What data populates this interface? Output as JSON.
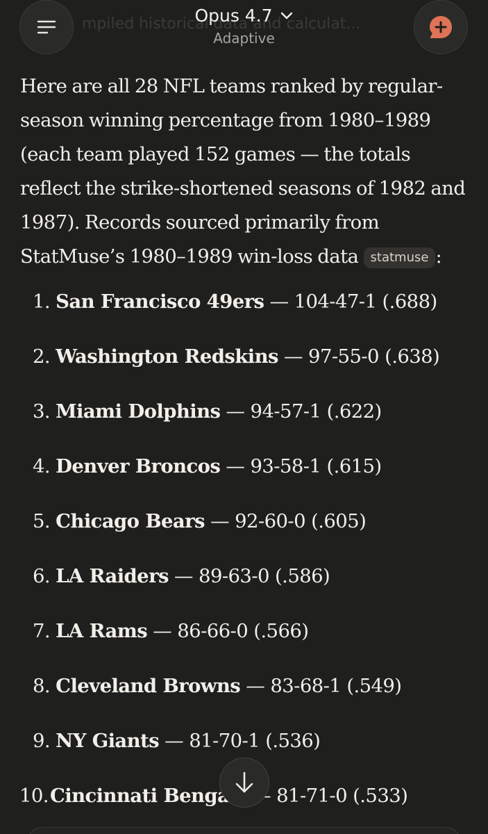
{
  "header": {
    "model_name": "Opus 4.7",
    "model_mode": "Adaptive",
    "ghost_title": "mpiled historical data and calculat..."
  },
  "colors": {
    "background": "#1f1f1e",
    "accent": "#de7356",
    "text": "#f1efe8"
  },
  "icons": {
    "menu": "menu-icon",
    "model_dropdown": "chevron-down-icon",
    "new_chat": "new-chat-plus-icon",
    "scroll_down": "arrow-down-icon"
  },
  "message": {
    "intro": "Here are all 28 NFL teams ranked by regular-season winning percentage from 1980–1989 (each team played 152 games — the totals reflect the strike-shortened seasons of 1982 and 1987). Records sourced primarily from StatMuse’s 1980–1989 win-loss data",
    "citation": "statmuse",
    "intro_end": ":",
    "rankings": [
      {
        "num": "1.",
        "team": "San Francisco 49ers",
        "record": " — 104-47-1 (.688)"
      },
      {
        "num": "2.",
        "team": "Washington Redskins",
        "record": " — 97-55-0 (.638)"
      },
      {
        "num": "3.",
        "team": "Miami Dolphins",
        "record": " — 94-57-1 (.622)"
      },
      {
        "num": "4.",
        "team": "Denver Broncos",
        "record": " — 93-58-1 (.615)"
      },
      {
        "num": "5.",
        "team": "Chicago Bears",
        "record": " — 92-60-0 (.605)"
      },
      {
        "num": "6.",
        "team": "LA Raiders",
        "record": " — 89-63-0 (.586)"
      },
      {
        "num": "7.",
        "team": "LA Rams",
        "record": " — 86-66-0 (.566)"
      },
      {
        "num": "8.",
        "team": "Cleveland Browns",
        "record": " — 83-68-1 (.549)"
      },
      {
        "num": "9.",
        "team": "NY Giants",
        "record": " — 81-70-1 (.536)"
      },
      {
        "num": "10.",
        "team": "Cincinnati Bengals",
        "record": " — 81-71-0 (.533)"
      }
    ]
  }
}
